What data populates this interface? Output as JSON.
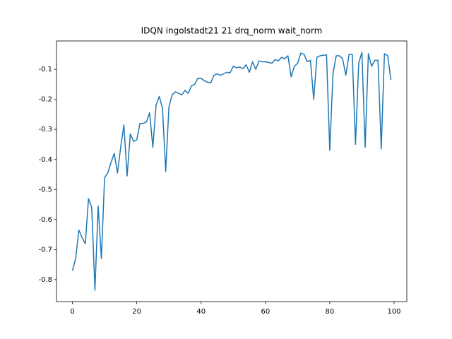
{
  "chart_data": {
    "type": "line",
    "title": "IDQN ingolstadt21 21 drq_norm wait_norm",
    "x": [
      0,
      1,
      2,
      3,
      4,
      5,
      6,
      7,
      8,
      9,
      10,
      11,
      12,
      13,
      14,
      15,
      16,
      17,
      18,
      19,
      20,
      21,
      22,
      23,
      24,
      25,
      26,
      27,
      28,
      29,
      30,
      31,
      32,
      33,
      34,
      35,
      36,
      37,
      38,
      39,
      40,
      41,
      42,
      43,
      44,
      45,
      46,
      47,
      48,
      49,
      50,
      51,
      52,
      53,
      54,
      55,
      56,
      57,
      58,
      59,
      60,
      61,
      62,
      63,
      64,
      65,
      66,
      67,
      68,
      69,
      70,
      71,
      72,
      73,
      74,
      75,
      76,
      77,
      78,
      79,
      80,
      81,
      82,
      83,
      84,
      85,
      86,
      87,
      88,
      89,
      90,
      91,
      92,
      93,
      94,
      95,
      96,
      97,
      98,
      99
    ],
    "series": [
      {
        "color": "#1f77b4",
        "values": [
          -0.77,
          -0.73,
          -0.635,
          -0.66,
          -0.68,
          -0.53,
          -0.56,
          -0.835,
          -0.555,
          -0.73,
          -0.46,
          -0.445,
          -0.41,
          -0.38,
          -0.445,
          -0.36,
          -0.285,
          -0.455,
          -0.315,
          -0.34,
          -0.335,
          -0.28,
          -0.28,
          -0.275,
          -0.245,
          -0.36,
          -0.22,
          -0.19,
          -0.23,
          -0.44,
          -0.225,
          -0.185,
          -0.175,
          -0.18,
          -0.185,
          -0.17,
          -0.18,
          -0.155,
          -0.15,
          -0.13,
          -0.13,
          -0.138,
          -0.143,
          -0.145,
          -0.12,
          -0.115,
          -0.12,
          -0.115,
          -0.11,
          -0.112,
          -0.09,
          -0.095,
          -0.092,
          -0.098,
          -0.085,
          -0.11,
          -0.075,
          -0.1,
          -0.072,
          -0.075,
          -0.075,
          -0.077,
          -0.08,
          -0.068,
          -0.072,
          -0.06,
          -0.065,
          -0.055,
          -0.125,
          -0.09,
          -0.08,
          -0.046,
          -0.05,
          -0.075,
          -0.07,
          -0.2,
          -0.06,
          -0.055,
          -0.053,
          -0.052,
          -0.37,
          -0.115,
          -0.055,
          -0.055,
          -0.065,
          -0.12,
          -0.05,
          -0.05,
          -0.35,
          -0.08,
          -0.043,
          -0.36,
          -0.048,
          -0.09,
          -0.07,
          -0.07,
          -0.365,
          -0.048,
          -0.055,
          -0.135
        ]
      }
    ],
    "xlim": [
      -4.95,
      103.95
    ],
    "ylim": [
      -0.873,
      -0.0057
    ],
    "xticks": [
      0,
      20,
      40,
      60,
      80,
      100
    ],
    "yticks": [
      -0.8,
      -0.7,
      -0.6,
      -0.5,
      -0.4,
      -0.3,
      -0.2,
      -0.1
    ]
  }
}
